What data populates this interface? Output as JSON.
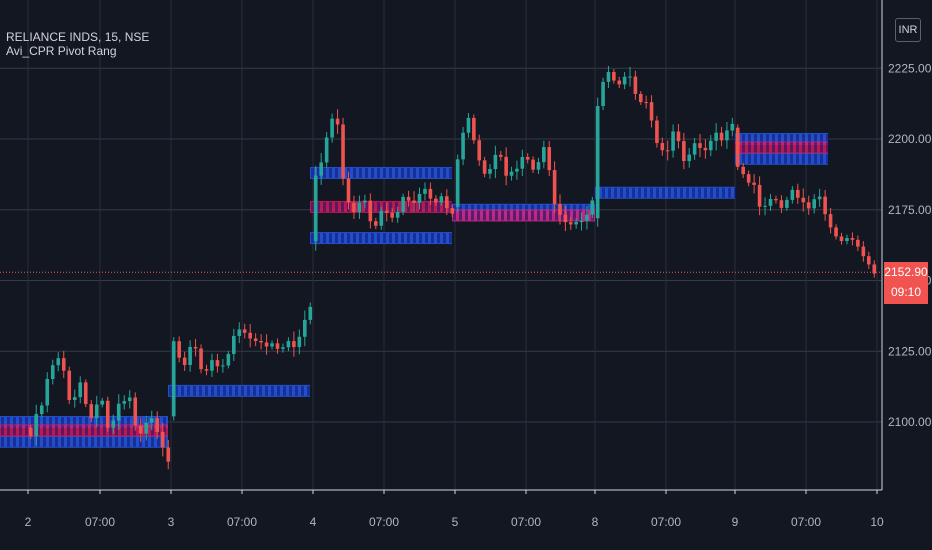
{
  "header": {
    "title": "RELIANCE INDS, 15, NSE",
    "indicator": "Avi_CPR Pivot Rang",
    "currency": "INR"
  },
  "last_price": {
    "value": "2152.90",
    "countdown": "09:10"
  },
  "colors": {
    "background": "#131722",
    "grid": "#363a45",
    "up": "#26a69a",
    "down": "#ef5350",
    "cpr_band": "#2962ff",
    "pivot": "#e91e63",
    "price_line": "#ef5350"
  },
  "chart_data": {
    "type": "candlestick",
    "y_ticks": [
      2100,
      2125,
      2150,
      2175,
      2200,
      2225
    ],
    "y_tick_labels": [
      "2100.00",
      "2125.00",
      "2150.00",
      "2175.00",
      "2200.00",
      "2225.00"
    ],
    "ylim": [
      2082,
      2240
    ],
    "x_ticks": [
      "2",
      "07:00",
      "3",
      "07:00",
      "4",
      "07:00",
      "5",
      "07:00",
      "8",
      "07:00",
      "9",
      "07:00",
      "10"
    ],
    "last_price": 2152.9,
    "cpr_levels": [
      {
        "day": "1",
        "top": 2100,
        "pivot": 2097,
        "bottom": 2093
      },
      {
        "day": "2",
        "top": 2111,
        "pivot": 2111,
        "bottom": 2111
      },
      {
        "day": "3",
        "top": 2188,
        "pivot": 2176,
        "bottom": 2165
      },
      {
        "day": "4",
        "top": 2175,
        "pivot": 2173,
        "bottom": 2173
      },
      {
        "day": "5",
        "top": 2181,
        "pivot": 2181,
        "bottom": 2181
      },
      {
        "day": "6",
        "top": 2200,
        "pivot": 2197,
        "bottom": 2193
      }
    ],
    "days": [
      {
        "label": "2",
        "open": 2098,
        "path": [
          2095,
          2104,
          2118,
          2122,
          2106,
          2116,
          2100,
          2112,
          2096,
          2104,
          2108,
          2092,
          2100,
          2098,
          2088
        ]
      },
      {
        "label": "3",
        "open": 2102,
        "path": [
          2128,
          2120,
          2132,
          2116,
          2124,
          2118,
          2128,
          2132,
          2126,
          2130,
          2128,
          2126,
          2130,
          2128,
          2140
        ]
      },
      {
        "label": "4",
        "open": 2164,
        "path": [
          2190,
          2198,
          2210,
          2178,
          2172,
          2180,
          2168,
          2178,
          2172,
          2180,
          2174,
          2182,
          2176,
          2180,
          2174
        ]
      },
      {
        "label": "5",
        "open": 2176,
        "path": [
          2192,
          2208,
          2196,
          2186,
          2198,
          2190,
          2186,
          2194,
          2188,
          2196,
          2180,
          2174,
          2170,
          2174,
          2178
        ]
      },
      {
        "label": "8",
        "open": 2172,
        "path": [
          2214,
          2226,
          2218,
          2222,
          2214,
          2212,
          2200,
          2196,
          2206,
          2194,
          2198,
          2192,
          2200,
          2198,
          2204
        ]
      },
      {
        "label": "9",
        "open": 2204,
        "path": [
          2190,
          2184,
          2178,
          2180,
          2176,
          2184,
          2172,
          2180,
          2168,
          2164,
          2166,
          2160,
          2153
        ]
      }
    ]
  }
}
